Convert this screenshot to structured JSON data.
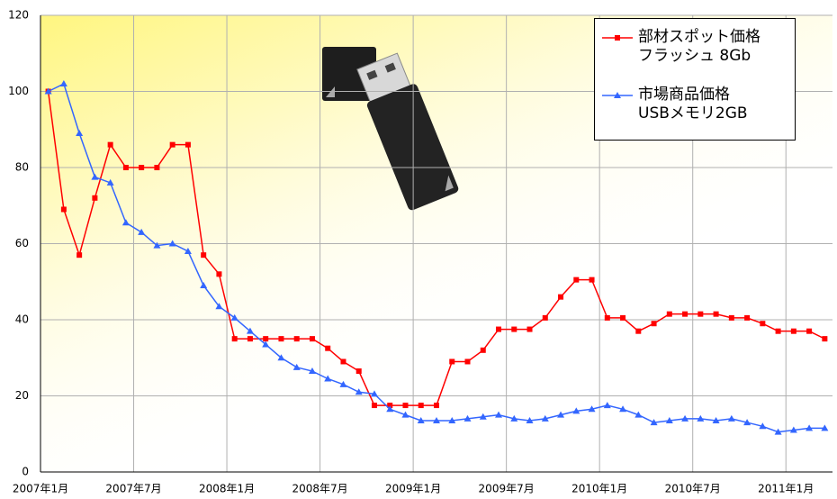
{
  "chart_data": {
    "type": "line",
    "categories": [
      "2007年1月",
      null,
      null,
      null,
      null,
      null,
      "2007年7月",
      null,
      null,
      null,
      null,
      null,
      "2008年1月",
      null,
      null,
      null,
      null,
      null,
      "2008年7月",
      null,
      null,
      null,
      null,
      null,
      "2009年1月",
      null,
      null,
      null,
      null,
      null,
      "2009年7月",
      null,
      null,
      null,
      null,
      null,
      "2010年1月",
      null,
      null,
      null,
      null,
      null,
      "2010年7月",
      null,
      null,
      null,
      null,
      null,
      "2011年1月",
      null,
      null
    ],
    "series": [
      {
        "name": "部材スポット価格\nフラッシュ 8Gb",
        "color": "#ff0000",
        "marker": "square",
        "values": [
          100,
          69,
          57,
          72,
          86,
          80,
          80,
          80,
          86,
          86,
          57,
          52,
          35,
          35,
          35,
          35,
          35,
          35,
          32.5,
          29,
          26.5,
          17.5,
          17.5,
          17.5,
          17.5,
          17.5,
          29,
          29,
          32,
          37.5,
          37.5,
          37.5,
          40.5,
          46,
          50.5,
          50.5,
          40.5,
          40.5,
          37,
          39,
          41.5,
          41.5,
          41.5,
          41.5,
          40.5,
          40.5,
          39,
          37,
          37,
          37,
          35
        ]
      },
      {
        "name": "市場商品価格\nUSBメモリ2GB",
        "color": "#3366ff",
        "marker": "triangle",
        "values": [
          100,
          102,
          89,
          77.5,
          76,
          65.5,
          63,
          59.5,
          60,
          58,
          49,
          43.5,
          40.5,
          37,
          33.5,
          30,
          27.5,
          26.5,
          24.5,
          23,
          21,
          20.5,
          16.5,
          15,
          13.5,
          13.5,
          13.5,
          14,
          14.5,
          15,
          14,
          13.5,
          14,
          15,
          16,
          16.5,
          17.5,
          16.5,
          15,
          13,
          13.5,
          14,
          14,
          13.5,
          14,
          13,
          12,
          10.5,
          11,
          11.5,
          11.5
        ]
      }
    ],
    "ylim": [
      0,
      120
    ],
    "yticks": [
      0,
      20,
      40,
      60,
      80,
      100,
      120
    ],
    "grid": true
  }
}
